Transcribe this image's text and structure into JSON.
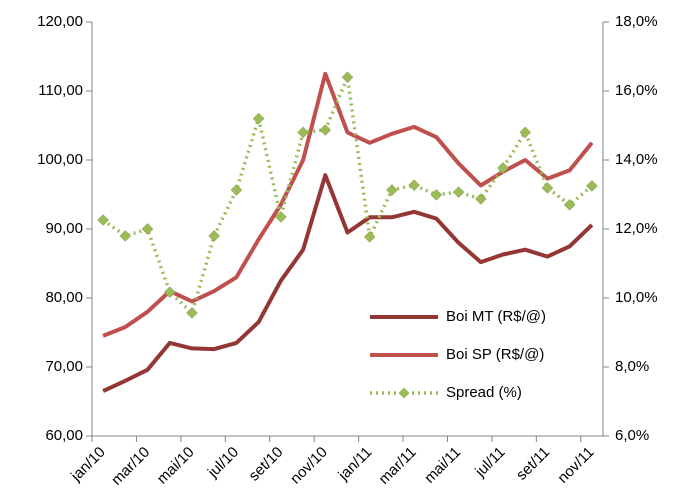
{
  "chart_data": {
    "type": "line",
    "categories": [
      "jan/10",
      null,
      "mar/10",
      null,
      "mai/10",
      null,
      "jul/10",
      null,
      "set/10",
      null,
      "nov/10",
      null,
      "jan/11",
      null,
      "mar/11",
      null,
      "mai/11",
      null,
      "jul/11",
      null,
      "set/11",
      null,
      "nov/11"
    ],
    "series": [
      {
        "name": "Boi MT (R$/@)",
        "color": "#943634",
        "values": [
          66.5,
          68,
          69.6,
          73.5,
          72.7,
          72.6,
          73.5,
          76.5,
          82.5,
          87,
          97.8,
          89.5,
          91.7,
          91.7,
          92.5,
          91.5,
          88,
          85.2,
          86.3,
          87,
          86,
          87.5,
          90.6
        ]
      },
      {
        "name": "Boi SP (R$/@)",
        "color": "#c0504d",
        "values": [
          74.5,
          75.8,
          78,
          81,
          79.5,
          81,
          83,
          88.5,
          93.5,
          100,
          112.5,
          104,
          102.5,
          103.8,
          104.8,
          103.3,
          99.5,
          96.3,
          98.3,
          100,
          97.3,
          98.5,
          102.5
        ]
      },
      {
        "name": "Spread (%)",
        "color": "#9bbb59",
        "axis": "y2",
        "dashed": true,
        "marker": "diamond",
        "values": [
          12.26,
          11.8,
          12.0,
          10.17,
          9.57,
          11.8,
          13.13,
          15.2,
          12.35,
          14.8,
          14.87,
          16.4,
          11.77,
          13.13,
          13.27,
          12.99,
          13.07,
          12.87,
          13.77,
          14.8,
          13.19,
          12.7,
          13.25
        ]
      }
    ],
    "ylim": [
      60,
      120
    ],
    "yticks": [
      {
        "value": 60,
        "label": "60,00"
      },
      {
        "value": 70,
        "label": "70,00"
      },
      {
        "value": 80,
        "label": "80,00"
      },
      {
        "value": 90,
        "label": "90,00"
      },
      {
        "value": 100,
        "label": "100,00"
      },
      {
        "value": 110,
        "label": "110,00"
      },
      {
        "value": 120,
        "label": "120,00"
      }
    ],
    "y2lim": [
      6,
      18
    ],
    "y2ticks": [
      {
        "value": 6,
        "label": "6,0%"
      },
      {
        "value": 8,
        "label": "8,0%"
      },
      {
        "value": 10,
        "label": "10,0%"
      },
      {
        "value": 12,
        "label": "12,0%"
      },
      {
        "value": 14,
        "label": "14,0%"
      },
      {
        "value": 16,
        "label": "16,0%"
      },
      {
        "value": 18,
        "label": "18,0%"
      }
    ],
    "grid": false,
    "legend": "lower-right"
  }
}
